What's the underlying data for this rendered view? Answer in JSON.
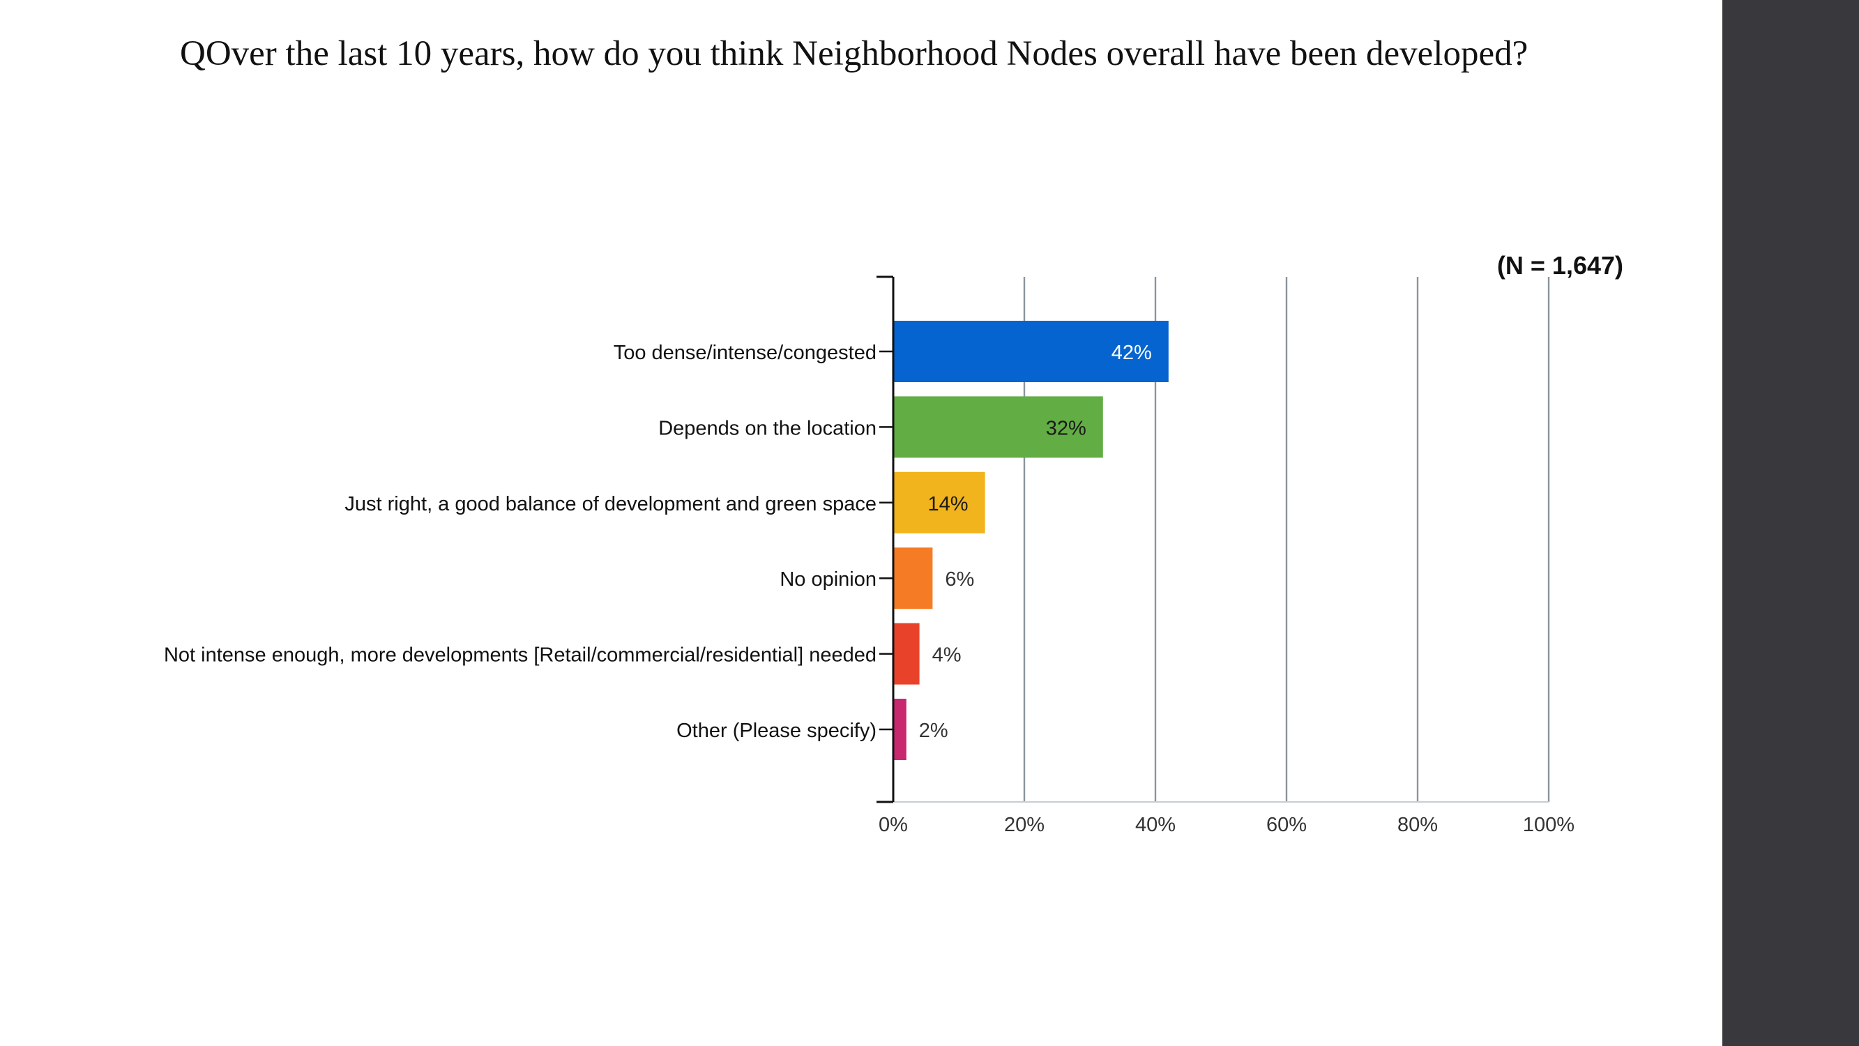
{
  "slide": {
    "question": "QOver the last 10 years, how do you think Neighborhood Nodes overall have been developed?",
    "sidebar_color": "#38383d"
  },
  "chart_data": {
    "type": "bar",
    "orientation": "horizontal",
    "annotation": "(N = 1,647)",
    "categories": [
      "Too dense/intense/congested",
      "Depends on the location",
      "Just right, a good balance of development and green space",
      "No opinion",
      "Not intense enough, more developments [Retail/commercial/residential] needed",
      "Other (Please specify)"
    ],
    "values": [
      42,
      32,
      14,
      6,
      4,
      2
    ],
    "value_labels": [
      "42%",
      "32%",
      "14%",
      "6%",
      "4%",
      "2%"
    ],
    "colors": [
      "#0564d0",
      "#62ad44",
      "#f2b41c",
      "#f57c24",
      "#e8432a",
      "#c8296e"
    ],
    "xlim": [
      0,
      100
    ],
    "xticks": [
      0,
      20,
      40,
      60,
      80,
      100
    ],
    "xtick_labels": [
      "0%",
      "20%",
      "40%",
      "60%",
      "80%",
      "100%"
    ],
    "grid": true
  }
}
